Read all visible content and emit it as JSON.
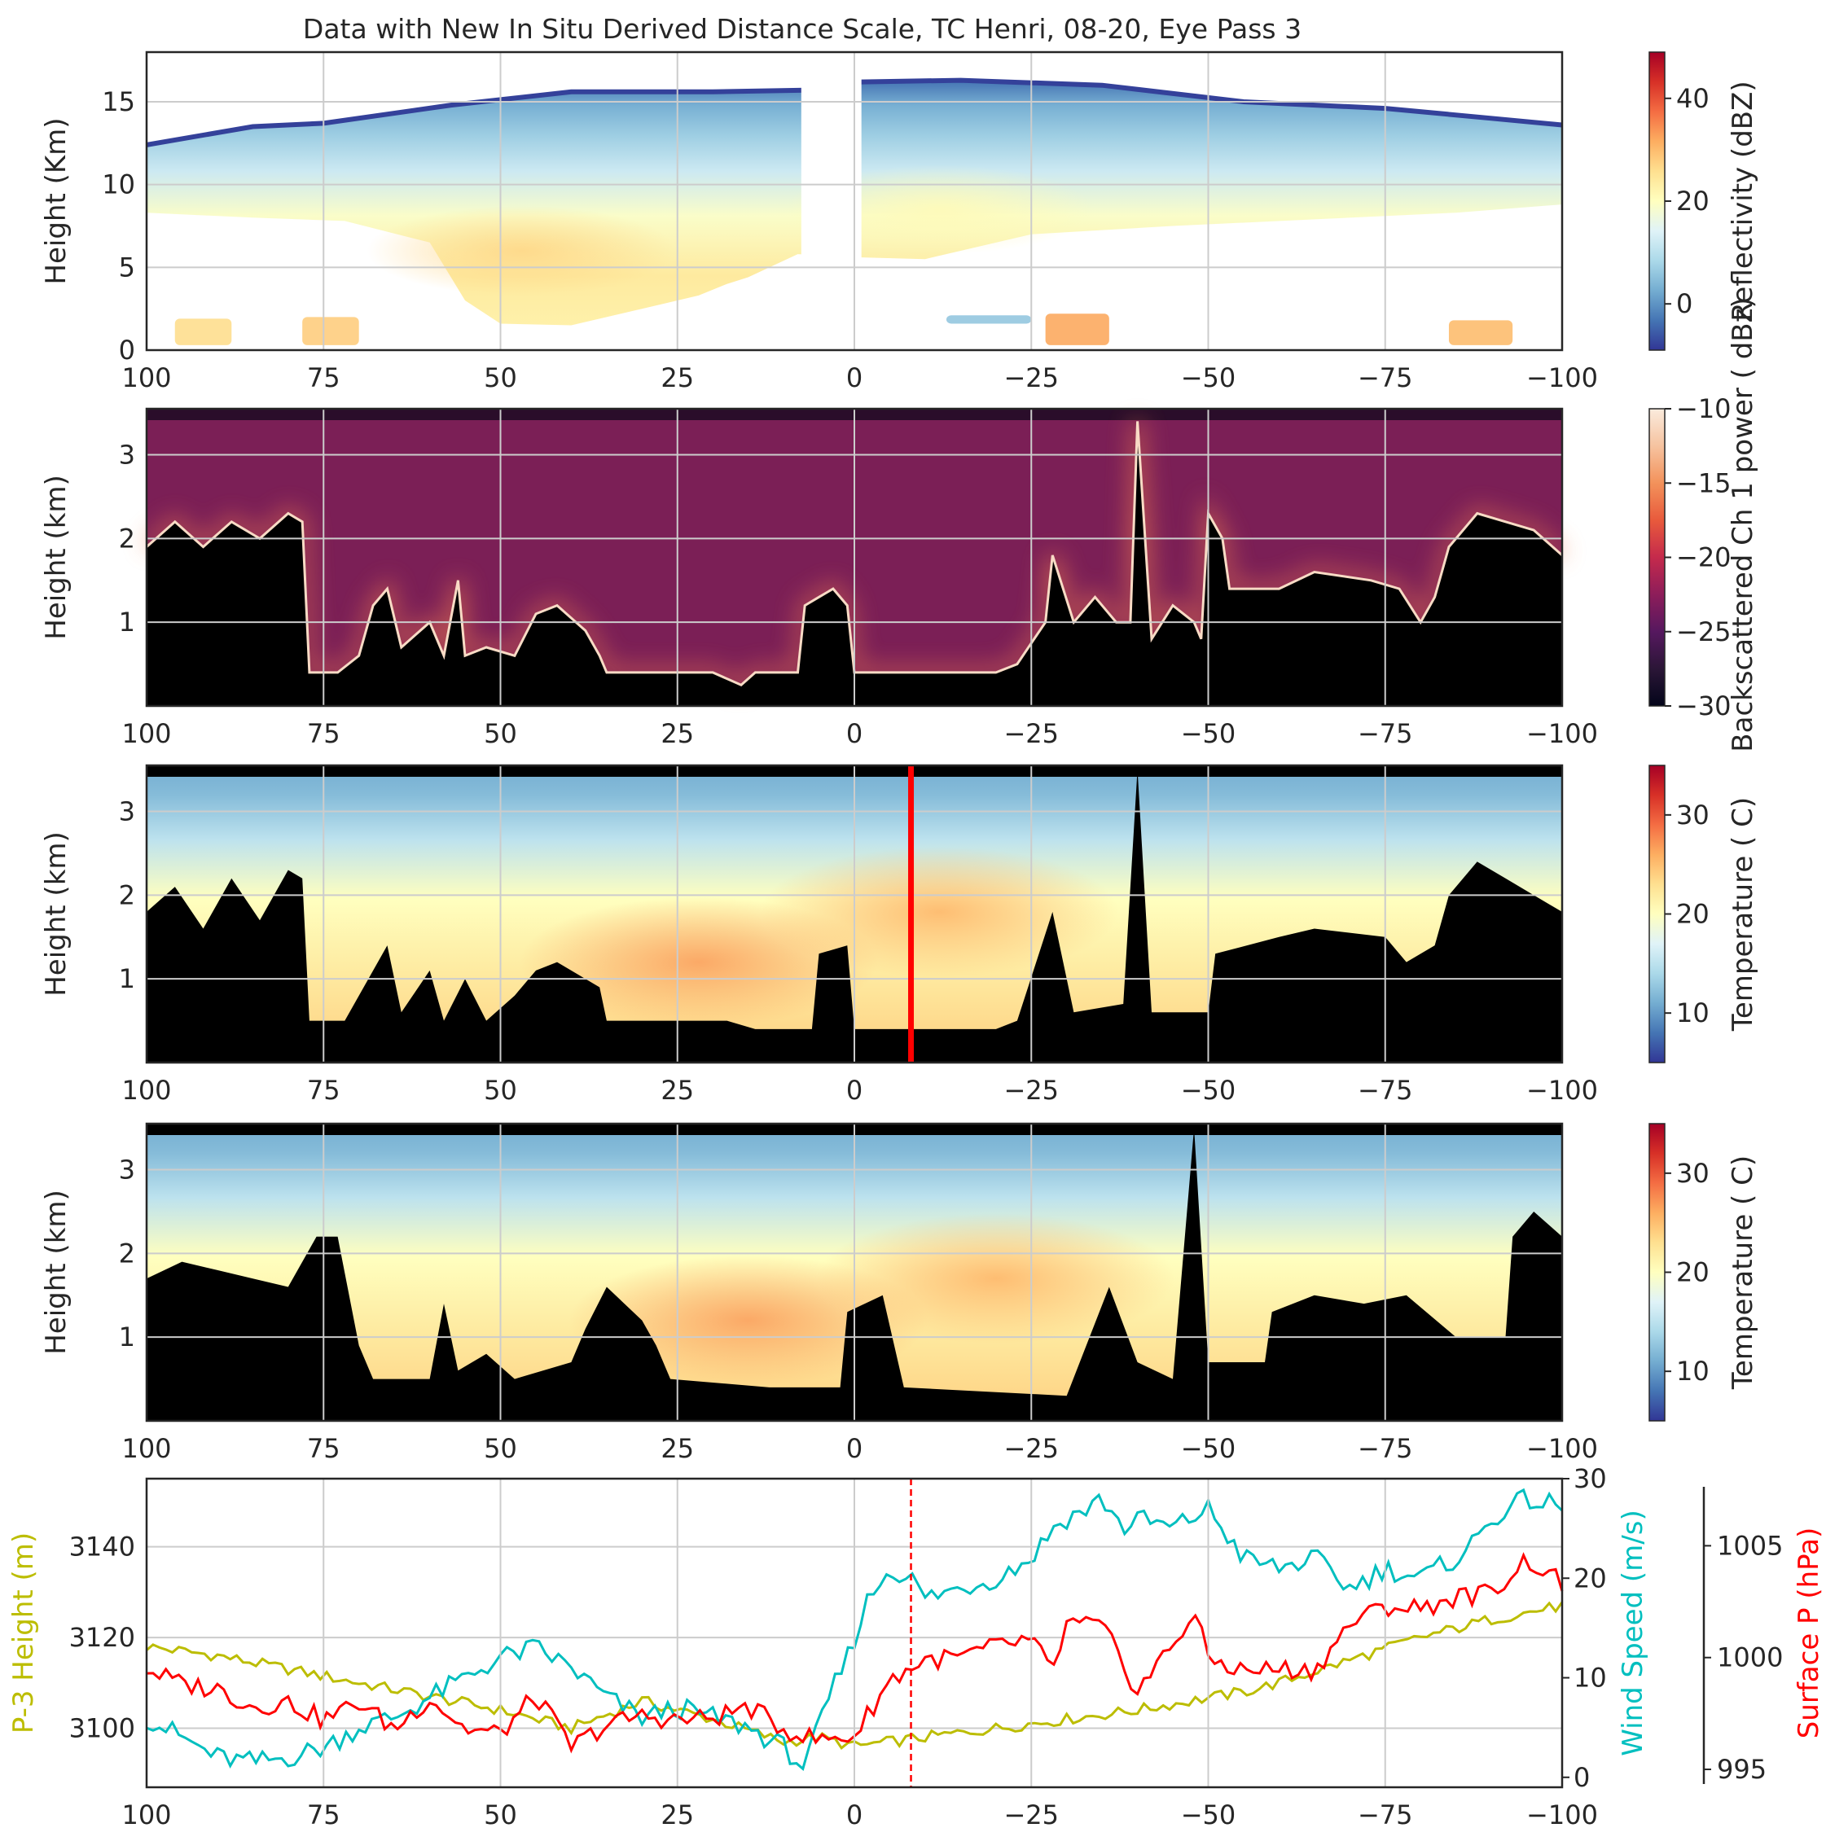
{
  "figure": {
    "title": "Data with New In Situ Derived Distance Scale, TC Henri, 08-20, Eye Pass 3"
  },
  "colors": {
    "clear_air": "#7b1f56",
    "ground": "#000000",
    "marker_line": "#ff0000",
    "p3_height": "#bcbd00",
    "wind_speed": "#00bfbf",
    "surface_pressure": "#ff0000"
  },
  "chart_data": [
    {
      "type": "heatmap",
      "panel": "reflectivity",
      "ylabel": "Height (Km)",
      "x_ticks": [
        "100",
        "75",
        "50",
        "25",
        "0",
        "−25",
        "−50",
        "−75",
        "−100"
      ],
      "y_ticks": [
        "0",
        "5",
        "10",
        "15"
      ],
      "xlim": [
        100,
        -100
      ],
      "ylim": [
        0,
        18
      ],
      "colorbar": {
        "label": "Reflectivity (dBZ)",
        "range": [
          -9,
          49
        ],
        "ticks": [
          "0",
          "20",
          "40"
        ],
        "colormap": "RdYlBu_r"
      },
      "echo": {
        "top_km": [
          [
            100,
            12.4
          ],
          [
            85,
            13.5
          ],
          [
            75,
            13.7
          ],
          [
            57,
            14.8
          ],
          [
            40,
            15.6
          ],
          [
            20,
            15.6
          ],
          [
            7,
            15.7
          ],
          [
            -1,
            16.2
          ],
          [
            -15,
            16.3
          ],
          [
            -35,
            16.0
          ],
          [
            -55,
            15.0
          ],
          [
            -75,
            14.6
          ],
          [
            -90,
            14.0
          ],
          [
            -100,
            13.6
          ]
        ],
        "base_km": [
          [
            100,
            8.3
          ],
          [
            85,
            8.0
          ],
          [
            72,
            7.8
          ],
          [
            60,
            6.5
          ],
          [
            57,
            4.4
          ],
          [
            55,
            3.0
          ],
          [
            50,
            1.6
          ],
          [
            40,
            1.5
          ],
          [
            30,
            2.5
          ],
          [
            22,
            3.3
          ],
          [
            18,
            4.0
          ],
          [
            15,
            4.4
          ],
          [
            8,
            5.8
          ],
          [
            -1,
            5.6
          ],
          [
            -10,
            5.5
          ],
          [
            -25,
            7.0
          ],
          [
            -45,
            7.5
          ],
          [
            -65,
            7.9
          ],
          [
            -85,
            8.3
          ],
          [
            -100,
            8.8
          ]
        ],
        "gap_km": [
          7.5,
          -1.0
        ],
        "core": [
          {
            "x": 47,
            "z": 6.0,
            "dbz": 27
          },
          {
            "x": -12,
            "z": 8.5,
            "dbz": 21
          }
        ]
      },
      "low_echoes": [
        {
          "x": [
            96,
            88
          ],
          "z": [
            0.3,
            1.9
          ],
          "dbz": 26
        },
        {
          "x": [
            78,
            70
          ],
          "z": [
            0.3,
            2.0
          ],
          "dbz": 28
        },
        {
          "x": [
            -27,
            -36
          ],
          "z": [
            0.3,
            2.2
          ],
          "dbz": 32
        },
        {
          "x": [
            -84,
            -93
          ],
          "z": [
            0.3,
            1.8
          ],
          "dbz": 30
        },
        {
          "x": [
            -13,
            -25
          ],
          "z": [
            1.6,
            2.1
          ],
          "dbz": 6
        }
      ]
    },
    {
      "type": "heatmap",
      "panel": "lidar_backscatter",
      "ylabel": "Height (km)",
      "x_ticks": [
        "100",
        "75",
        "50",
        "25",
        "0",
        "−25",
        "−50",
        "−75",
        "−100"
      ],
      "y_ticks": [
        "1",
        "2",
        "3"
      ],
      "xlim": [
        100,
        -100
      ],
      "ylim": [
        0,
        3.55
      ],
      "colorbar": {
        "label": "Backscattered Ch 1 power ( dBz)",
        "range": [
          -30,
          -10
        ],
        "ticks": [
          "−10",
          "−15",
          "−20",
          "−25",
          "−30"
        ],
        "colormap": "rocket"
      },
      "cloud_top_km": [
        [
          100,
          1.9
        ],
        [
          96,
          2.2
        ],
        [
          92,
          1.9
        ],
        [
          88,
          2.2
        ],
        [
          84,
          2.0
        ],
        [
          80,
          2.3
        ],
        [
          78,
          2.2
        ],
        [
          77,
          0.4
        ],
        [
          73,
          0.4
        ],
        [
          70,
          0.6
        ],
        [
          68,
          1.2
        ],
        [
          66,
          1.4
        ],
        [
          64,
          0.7
        ],
        [
          60,
          1.0
        ],
        [
          58,
          0.6
        ],
        [
          56,
          1.5
        ],
        [
          55,
          0.6
        ],
        [
          52,
          0.7
        ],
        [
          48,
          0.6
        ],
        [
          45,
          1.1
        ],
        [
          42,
          1.2
        ],
        [
          38,
          0.9
        ],
        [
          36,
          0.6
        ],
        [
          35,
          0.4
        ],
        [
          20,
          0.4
        ],
        [
          16,
          0.25
        ],
        [
          14,
          0.4
        ],
        [
          8,
          0.4
        ],
        [
          7,
          1.2
        ],
        [
          5,
          1.3
        ],
        [
          3,
          1.4
        ],
        [
          1,
          1.2
        ],
        [
          0,
          0.4
        ],
        [
          -20,
          0.4
        ],
        [
          -23,
          0.5
        ],
        [
          -27,
          1.0
        ],
        [
          -28,
          1.8
        ],
        [
          -31,
          1.0
        ],
        [
          -34,
          1.3
        ],
        [
          -37,
          1.0
        ],
        [
          -39,
          1.0
        ],
        [
          -40,
          3.4
        ],
        [
          -42,
          0.8
        ],
        [
          -45,
          1.2
        ],
        [
          -48,
          1.0
        ],
        [
          -49,
          0.8
        ],
        [
          -50,
          2.3
        ],
        [
          -52,
          2.0
        ],
        [
          -53,
          1.4
        ],
        [
          -60,
          1.4
        ],
        [
          -65,
          1.6
        ],
        [
          -73,
          1.5
        ],
        [
          -77,
          1.4
        ],
        [
          -80,
          1.0
        ],
        [
          -82,
          1.3
        ],
        [
          -83,
          1.6
        ],
        [
          -84,
          1.9
        ],
        [
          -85,
          2.0
        ],
        [
          -88,
          2.3
        ],
        [
          -92,
          2.2
        ],
        [
          -96,
          2.1
        ],
        [
          -100,
          1.8
        ]
      ]
    },
    {
      "type": "heatmap",
      "panel": "temperature_a",
      "ylabel": "Height (km)",
      "x_ticks": [
        "100",
        "75",
        "50",
        "25",
        "0",
        "−25",
        "−50",
        "−75",
        "−100"
      ],
      "y_ticks": [
        "1",
        "2",
        "3"
      ],
      "xlim": [
        100,
        -100
      ],
      "ylim": [
        0,
        3.55
      ],
      "marker_x": -8,
      "colorbar": {
        "label": "Temperature ( C)",
        "range": [
          5,
          35
        ],
        "ticks": [
          "10",
          "20",
          "30"
        ],
        "colormap": "RdYlBu_r"
      },
      "warm_core": [
        {
          "x": 22,
          "z": 1.2,
          "temp_c": 27
        },
        {
          "x": -12,
          "z": 1.8,
          "temp_c": 26
        }
      ],
      "terrain_top_km": [
        [
          100,
          1.8
        ],
        [
          96,
          2.1
        ],
        [
          92,
          1.6
        ],
        [
          88,
          2.2
        ],
        [
          84,
          1.7
        ],
        [
          80,
          2.3
        ],
        [
          78,
          2.2
        ],
        [
          77,
          0.5
        ],
        [
          72,
          0.5
        ],
        [
          66,
          1.4
        ],
        [
          64,
          0.6
        ],
        [
          60,
          1.1
        ],
        [
          58,
          0.5
        ],
        [
          55,
          1.0
        ],
        [
          52,
          0.5
        ],
        [
          48,
          0.8
        ],
        [
          45,
          1.1
        ],
        [
          42,
          1.2
        ],
        [
          36,
          0.9
        ],
        [
          35,
          0.5
        ],
        [
          18,
          0.5
        ],
        [
          14,
          0.4
        ],
        [
          6,
          0.4
        ],
        [
          5,
          1.3
        ],
        [
          1,
          1.4
        ],
        [
          0,
          0.4
        ],
        [
          -20,
          0.4
        ],
        [
          -23,
          0.5
        ],
        [
          -28,
          1.8
        ],
        [
          -31,
          0.6
        ],
        [
          -38,
          0.7
        ],
        [
          -40,
          3.5
        ],
        [
          -42,
          0.6
        ],
        [
          -50,
          0.6
        ],
        [
          -51,
          1.3
        ],
        [
          -60,
          1.5
        ],
        [
          -65,
          1.6
        ],
        [
          -75,
          1.5
        ],
        [
          -78,
          1.2
        ],
        [
          -82,
          1.4
        ],
        [
          -84,
          2.0
        ],
        [
          -88,
          2.4
        ],
        [
          -92,
          2.2
        ],
        [
          -96,
          2.0
        ],
        [
          -100,
          1.8
        ]
      ]
    },
    {
      "type": "heatmap",
      "panel": "temperature_b",
      "ylabel": "Height (km)",
      "x_ticks": [
        "100",
        "75",
        "50",
        "25",
        "0",
        "−25",
        "−50",
        "−75",
        "−100"
      ],
      "y_ticks": [
        "1",
        "2",
        "3"
      ],
      "xlim": [
        100,
        -100
      ],
      "ylim": [
        0,
        3.55
      ],
      "colorbar": {
        "label": "Temperature ( C)",
        "range": [
          5,
          35
        ],
        "ticks": [
          "10",
          "20",
          "30"
        ],
        "colormap": "RdYlBu_r"
      },
      "warm_core": [
        {
          "x": 15,
          "z": 1.2,
          "temp_c": 27
        },
        {
          "x": -20,
          "z": 1.7,
          "temp_c": 26
        }
      ],
      "terrain_top_km": [
        [
          100,
          1.7
        ],
        [
          95,
          1.9
        ],
        [
          90,
          1.8
        ],
        [
          85,
          1.7
        ],
        [
          80,
          1.6
        ],
        [
          76,
          2.2
        ],
        [
          73,
          2.2
        ],
        [
          70,
          0.9
        ],
        [
          68,
          0.5
        ],
        [
          60,
          0.5
        ],
        [
          58,
          1.4
        ],
        [
          56,
          0.6
        ],
        [
          52,
          0.8
        ],
        [
          48,
          0.5
        ],
        [
          40,
          0.7
        ],
        [
          38,
          1.1
        ],
        [
          35,
          1.6
        ],
        [
          30,
          1.2
        ],
        [
          28,
          0.9
        ],
        [
          26,
          0.5
        ],
        [
          12,
          0.4
        ],
        [
          2,
          0.4
        ],
        [
          1,
          1.3
        ],
        [
          -4,
          1.5
        ],
        [
          -7,
          0.4
        ],
        [
          -30,
          0.3
        ],
        [
          -36,
          1.6
        ],
        [
          -40,
          0.7
        ],
        [
          -45,
          0.5
        ],
        [
          -48,
          3.5
        ],
        [
          -50,
          0.7
        ],
        [
          -58,
          0.7
        ],
        [
          -59,
          1.3
        ],
        [
          -65,
          1.5
        ],
        [
          -72,
          1.4
        ],
        [
          -78,
          1.5
        ],
        [
          -85,
          1.0
        ],
        [
          -92,
          1.0
        ],
        [
          -93,
          2.2
        ],
        [
          -96,
          2.5
        ],
        [
          -100,
          2.2
        ]
      ]
    },
    {
      "type": "line",
      "panel": "flight_level",
      "x_ticks": [
        "100",
        "75",
        "50",
        "25",
        "0",
        "−25",
        "−50",
        "−75",
        "−100"
      ],
      "xlim": [
        100,
        -100
      ],
      "marker_x": -8,
      "axes": {
        "left": {
          "label": "P-3 Height (m)",
          "ylim": [
            3087,
            3155
          ],
          "ticks": [
            "3100",
            "3120",
            "3140"
          ]
        },
        "right": {
          "label": "Wind Speed (m/s)",
          "ylim": [
            -1,
            30
          ],
          "ticks": [
            "0",
            "10",
            "20",
            "30"
          ]
        },
        "right2": {
          "label": "Surface P (hPa)",
          "ylim": [
            994.2,
            1008.0
          ],
          "ticks": [
            "995",
            "1000",
            "1005"
          ]
        }
      },
      "series": [
        {
          "axis": "left",
          "color": "#bcbd00",
          "x": [
            100,
            90,
            80,
            70,
            60,
            50,
            40,
            30,
            20,
            10,
            5,
            0,
            -10,
            -25,
            -40,
            -55,
            -60,
            -70,
            -80,
            -90,
            -100
          ],
          "values": [
            3118,
            3116,
            3113,
            3110,
            3107,
            3104,
            3100,
            3106,
            3102,
            3097,
            3098,
            3096,
            3098,
            3101,
            3104,
            3108,
            3110,
            3115,
            3120,
            3124,
            3127
          ]
        },
        {
          "axis": "right",
          "color": "#00bfbf",
          "x": [
            100,
            95,
            90,
            85,
            80,
            75,
            70,
            65,
            60,
            55,
            50,
            45,
            40,
            35,
            30,
            25,
            20,
            15,
            10,
            7,
            5,
            3,
            1,
            0,
            -2,
            -5,
            -8,
            -10,
            -15,
            -20,
            -25,
            -28,
            -30,
            -33,
            -35,
            -38,
            -40,
            -45,
            -50,
            -55,
            -60,
            -65,
            -70,
            -75,
            -80,
            -85,
            -88,
            -90,
            -95,
            -100
          ],
          "values": [
            6,
            4,
            2,
            1.5,
            2,
            3,
            5,
            6,
            8,
            10,
            12,
            13,
            11,
            8,
            6,
            7,
            6,
            5,
            3,
            1,
            5,
            9,
            12,
            14,
            18,
            21,
            20,
            18,
            19,
            20,
            22,
            25,
            26,
            27,
            28,
            25,
            26,
            25,
            27,
            22,
            21,
            22,
            19,
            21,
            20,
            22,
            24,
            26,
            28,
            27
          ]
        },
        {
          "axis": "right2",
          "color": "#ff0000",
          "x": [
            100,
            95,
            90,
            85,
            80,
            75,
            70,
            65,
            60,
            55,
            50,
            45,
            40,
            35,
            30,
            25,
            20,
            15,
            10,
            5,
            0,
            -5,
            -10,
            -15,
            -20,
            -25,
            -28,
            -30,
            -35,
            -40,
            -45,
            -48,
            -50,
            -53,
            -55,
            -60,
            -65,
            -70,
            -75,
            -80,
            -85,
            -90,
            -95,
            -100
          ],
          "values": [
            999.5,
            998.8,
            998.6,
            997.8,
            998.0,
            997.2,
            998.0,
            996.8,
            998.2,
            996.8,
            996.6,
            998.3,
            996.0,
            997.0,
            997.4,
            997.2,
            997.3,
            997.8,
            996.8,
            996.3,
            996.5,
            999.0,
            999.9,
            1000.0,
            1000.5,
            1000.8,
            999.3,
            1001.5,
            1001.4,
            998.5,
            1000.6,
            1002.0,
            1000.0,
            999.6,
            999.4,
            999.5,
            999.4,
            1001.5,
            1002.3,
            1002.2,
            1002.7,
            1002.9,
            1004.4,
            1003.3
          ]
        }
      ]
    }
  ]
}
